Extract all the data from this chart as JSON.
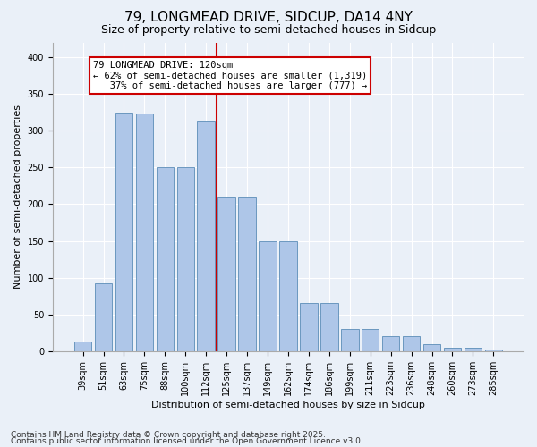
{
  "title1": "79, LONGMEAD DRIVE, SIDCUP, DA14 4NY",
  "title2": "Size of property relative to semi-detached houses in Sidcup",
  "xlabel": "Distribution of semi-detached houses by size in Sidcup",
  "ylabel": "Number of semi-detached properties",
  "categories": [
    "39sqm",
    "51sqm",
    "63sqm",
    "75sqm",
    "88sqm",
    "100sqm",
    "112sqm",
    "125sqm",
    "137sqm",
    "149sqm",
    "162sqm",
    "174sqm",
    "186sqm",
    "199sqm",
    "211sqm",
    "223sqm",
    "236sqm",
    "248sqm",
    "260sqm",
    "273sqm",
    "285sqm"
  ],
  "bar_heights": [
    13,
    92,
    325,
    323,
    250,
    250,
    313,
    210,
    210,
    150,
    150,
    65,
    65,
    30,
    30,
    20,
    20,
    9,
    5,
    5,
    2
  ],
  "bar_color": "#aec6e8",
  "bar_edge_color": "#5b8db8",
  "vline_color": "#cc0000",
  "annotation_line1": "79 LONGMEAD DRIVE: 120sqm",
  "annotation_line2": "← 62% of semi-detached houses are smaller (1,319)",
  "annotation_line3": "   37% of semi-detached houses are larger (777) →",
  "annotation_box_color": "#ffffff",
  "annotation_box_edge": "#cc0000",
  "ylim": [
    0,
    420
  ],
  "yticks": [
    0,
    50,
    100,
    150,
    200,
    250,
    300,
    350,
    400
  ],
  "footer1": "Contains HM Land Registry data © Crown copyright and database right 2025.",
  "footer2": "Contains public sector information licensed under the Open Government Licence v3.0.",
  "bg_color": "#eaf0f8",
  "plot_bg_color": "#eaf0f8",
  "title1_fontsize": 11,
  "title2_fontsize": 9,
  "xlabel_fontsize": 8,
  "ylabel_fontsize": 8,
  "tick_fontsize": 7,
  "footer_fontsize": 6.5,
  "annotation_fontsize": 7.5
}
